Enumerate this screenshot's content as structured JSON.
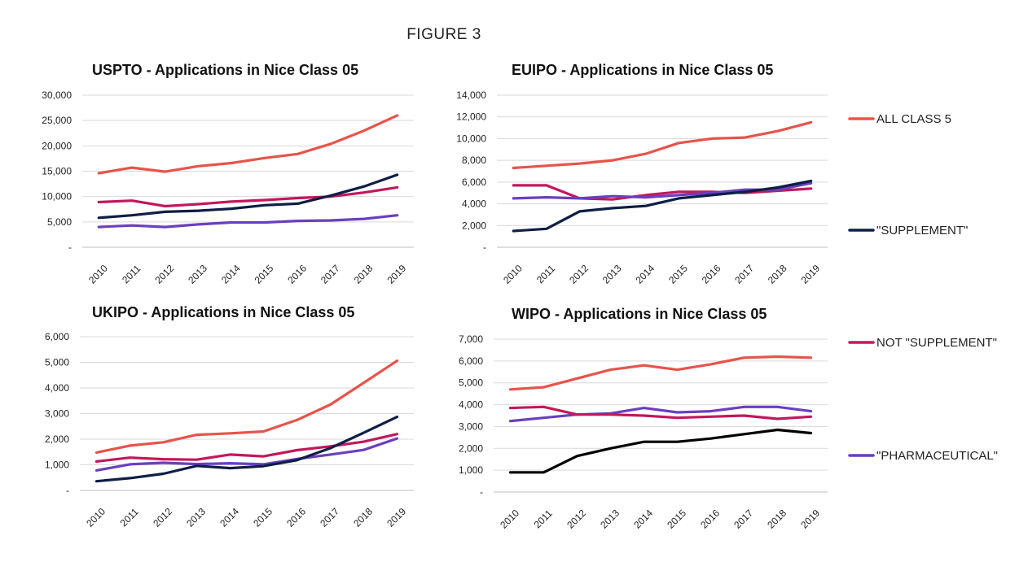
{
  "figure_title": "FIGURE 3",
  "colors": {
    "all_class_5": "#E8534A",
    "supplement": "#0E1E45",
    "supplement_wipo": "#000000",
    "not_supplement": "#C2185B",
    "pharmaceutical": "#6A3FC0"
  },
  "legend": [
    {
      "key": "all_class_5",
      "label": "ALL CLASS 5",
      "color": "#E8534A"
    },
    {
      "key": "supplement",
      "label": "\"SUPPLEMENT\"",
      "color": "#0E1E45"
    },
    {
      "key": "not_supplement",
      "label": "NOT \"SUPPLEMENT\"",
      "color": "#C2185B"
    },
    {
      "key": "pharmaceutical",
      "label": "\"PHARMACEUTICAL\"",
      "color": "#6A3FC0"
    }
  ],
  "chart_data": [
    {
      "type": "line",
      "title": "USPTO - Applications in Nice Class 05",
      "x": [
        "2010",
        "2011",
        "2012",
        "2013",
        "2014",
        "2015",
        "2016",
        "2017",
        "2018",
        "2019"
      ],
      "ylim": [
        0,
        30000
      ],
      "yticks": [
        "-",
        "5,000",
        "10,000",
        "15,000",
        "20,000",
        "25,000",
        "30,000"
      ],
      "grid": true,
      "series": [
        {
          "name": "ALL CLASS 5",
          "key": "all_class_5",
          "values": [
            14600,
            15700,
            14900,
            16000,
            16600,
            17600,
            18400,
            20400,
            23000,
            26000
          ]
        },
        {
          "name": "NOT \"SUPPLEMENT\"",
          "key": "not_supplement",
          "values": [
            8900,
            9200,
            8100,
            8500,
            9000,
            9300,
            9700,
            10000,
            10800,
            11800
          ]
        },
        {
          "name": "\"SUPPLEMENT\"",
          "key": "supplement",
          "values": [
            5800,
            6300,
            7000,
            7200,
            7600,
            8300,
            8600,
            10200,
            12000,
            14300
          ]
        },
        {
          "name": "\"PHARMACEUTICAL\"",
          "key": "pharmaceutical",
          "values": [
            4000,
            4300,
            4000,
            4500,
            4900,
            4900,
            5200,
            5300,
            5600,
            6300
          ]
        }
      ]
    },
    {
      "type": "line",
      "title": "EUIPO - Applications in Nice Class 05",
      "x": [
        "2010",
        "2011",
        "2012",
        "2013",
        "2014",
        "2015",
        "2016",
        "2017",
        "2018",
        "2019"
      ],
      "ylim": [
        0,
        14000
      ],
      "yticks": [
        "-",
        "2,000",
        "4,000",
        "6,000",
        "8,000",
        "10,000",
        "12,000",
        "14,000"
      ],
      "grid": true,
      "series": [
        {
          "name": "ALL CLASS 5",
          "key": "all_class_5",
          "values": [
            7300,
            7500,
            7700,
            8000,
            8600,
            9600,
            10000,
            10100,
            10700,
            11500
          ]
        },
        {
          "name": "NOT \"SUPPLEMENT\"",
          "key": "not_supplement",
          "values": [
            5700,
            5700,
            4500,
            4400,
            4800,
            5100,
            5100,
            5000,
            5200,
            5400
          ]
        },
        {
          "name": "\"PHARMACEUTICAL\"",
          "key": "pharmaceutical",
          "values": [
            4500,
            4600,
            4500,
            4700,
            4600,
            4800,
            5000,
            5300,
            5300,
            5900
          ]
        },
        {
          "name": "\"SUPPLEMENT\"",
          "key": "supplement",
          "values": [
            1500,
            1700,
            3300,
            3600,
            3800,
            4500,
            4800,
            5100,
            5500,
            6100
          ]
        }
      ]
    },
    {
      "type": "line",
      "title": "UKIPO - Applications in Nice Class 05",
      "x": [
        "2010",
        "2011",
        "2012",
        "2013",
        "2014",
        "2015",
        "2016",
        "2017",
        "2018",
        "2019"
      ],
      "ylim": [
        0,
        6000
      ],
      "yticks": [
        "-",
        "1,000",
        "2,000",
        "3,000",
        "4,000",
        "5,000",
        "6,000"
      ],
      "grid": true,
      "series": [
        {
          "name": "ALL CLASS 5",
          "key": "all_class_5",
          "values": [
            1480,
            1750,
            1880,
            2170,
            2230,
            2300,
            2750,
            3350,
            4200,
            5060
          ]
        },
        {
          "name": "NOT \"SUPPLEMENT\"",
          "key": "not_supplement",
          "values": [
            1130,
            1280,
            1220,
            1200,
            1400,
            1330,
            1570,
            1720,
            1900,
            2200
          ]
        },
        {
          "name": "\"PHARMACEUTICAL\"",
          "key": "pharmaceutical",
          "values": [
            780,
            1020,
            1080,
            1030,
            1060,
            1020,
            1230,
            1400,
            1580,
            2030
          ]
        },
        {
          "name": "\"SUPPLEMENT\"",
          "key": "supplement",
          "values": [
            360,
            480,
            650,
            960,
            870,
            950,
            1180,
            1650,
            2250,
            2870
          ]
        }
      ]
    },
    {
      "type": "line",
      "title": "WIPO - Applications in Nice Class 05",
      "x": [
        "2010",
        "2011",
        "2012",
        "2013",
        "2014",
        "2015",
        "2016",
        "2017",
        "2018",
        "2019"
      ],
      "ylim": [
        0,
        7000
      ],
      "yticks": [
        "-",
        "1,000",
        "2,000",
        "3,000",
        "4,000",
        "5,000",
        "6,000",
        "7,000"
      ],
      "grid": true,
      "series": [
        {
          "name": "ALL CLASS 5",
          "key": "all_class_5",
          "values": [
            4700,
            4800,
            5200,
            5600,
            5800,
            5600,
            5850,
            6150,
            6200,
            6150
          ]
        },
        {
          "name": "\"PHARMACEUTICAL\"",
          "key": "pharmaceutical",
          "values": [
            3250,
            3400,
            3550,
            3600,
            3850,
            3650,
            3700,
            3900,
            3900,
            3700
          ]
        },
        {
          "name": "NOT \"SUPPLEMENT\"",
          "key": "not_supplement",
          "values": [
            3850,
            3900,
            3550,
            3550,
            3500,
            3400,
            3450,
            3500,
            3350,
            3450
          ]
        },
        {
          "name": "\"SUPPLEMENT\"",
          "key": "supplement_wipo",
          "values": [
            900,
            900,
            1650,
            2000,
            2300,
            2300,
            2450,
            2650,
            2850,
            2700
          ]
        }
      ]
    }
  ]
}
